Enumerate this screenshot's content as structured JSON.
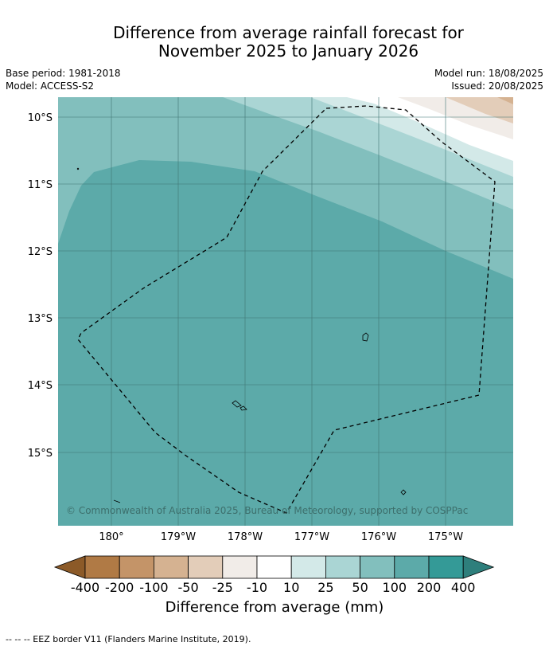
{
  "title_line1": "Difference from average rainfall forecast for",
  "title_line2": "November 2025 to January 2026",
  "base_period": "Base period: 1981-2018",
  "model": "Model: ACCESS-S2",
  "model_run": "Model run: 18/08/2025",
  "issued": "Issued: 20/08/2025",
  "lat_labels": [
    "10°S",
    "11°S",
    "12°S",
    "13°S",
    "14°S",
    "15°S"
  ],
  "lon_labels": [
    "180°",
    "179°W",
    "178°W",
    "177°W",
    "176°W",
    "175°W"
  ],
  "copyright": "© Commonwealth of Australia 2025, Bureau of Meteorology, supported by COSPPac",
  "legend": {
    "title": "Difference from average (mm)",
    "ticks": [
      "-400",
      "-200",
      "-100",
      "-50",
      "-25",
      "-10",
      "10",
      "25",
      "50",
      "100",
      "200",
      "400"
    ],
    "colors": [
      "#8c5a28",
      "#b07a45",
      "#c49468",
      "#d5b291",
      "#e3cdb9",
      "#f1ece8",
      "#ffffff",
      "#d3e9e8",
      "#aad5d4",
      "#82bfbd",
      "#5caaa9",
      "#349a97",
      "#2e7f7c"
    ]
  },
  "footer": "--  --  -- EEZ border V11 (Flanders Marine Institute, 2019)."
}
